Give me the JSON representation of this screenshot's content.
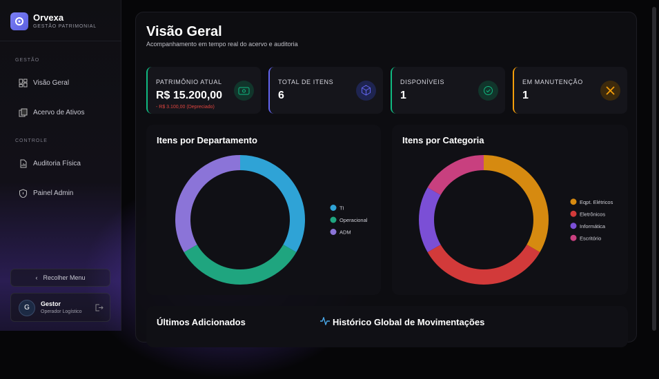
{
  "sidebar": {
    "brand": "Orvexa",
    "tagline": "GESTÃO PATRIMONIAL",
    "sections": [
      {
        "title": "GESTÃO",
        "items": [
          "Visão Geral",
          "Acervo de Ativos"
        ]
      },
      {
        "title": "CONTROLE",
        "items": [
          "Auditoria Física",
          "Painel Admin"
        ]
      }
    ],
    "collapse": "Recolher Menu",
    "user": {
      "initial": "G",
      "name": "Gestor",
      "role": "Operador Logístico"
    }
  },
  "header": {
    "title": "Visão Geral",
    "subtitle": "Acompanhamento em tempo real do acervo e auditoria"
  },
  "cards": [
    {
      "label": "PATRIMÔNIO ATUAL",
      "value": "R$ 15.200,00",
      "note": "- R$ 3.100,00 (Depreciado)",
      "color": "#10b981"
    },
    {
      "label": "TOTAL DE ITENS",
      "value": 6,
      "color": "#6366f1"
    },
    {
      "label": "DISPONÍVEIS",
      "value": 1,
      "color": "#10b981"
    },
    {
      "label": "EM MANUTENÇÃO",
      "value": 1,
      "color": "#f59e0b"
    }
  ],
  "charts": [
    {
      "type": "donut",
      "title": "Itens por Departamento",
      "categories": [
        "TI",
        "Operacional",
        "ADM"
      ],
      "values": [
        2,
        2,
        2
      ],
      "colors": [
        "#2fa3d6",
        "#1fa57f",
        "#8b74d8"
      ]
    },
    {
      "type": "donut",
      "title": "Itens por Categoria",
      "categories": [
        "Eqpt. Elétricos",
        "Eletrônicos",
        "Informática",
        "Escritório"
      ],
      "values": [
        2,
        2,
        1,
        1
      ],
      "colors": [
        "#d68a10",
        "#d23a3a",
        "#7b4fd6",
        "#c8407f"
      ]
    }
  ],
  "sections": [
    "Últimos Adicionados",
    "Histórico Global de Movimentações"
  ]
}
